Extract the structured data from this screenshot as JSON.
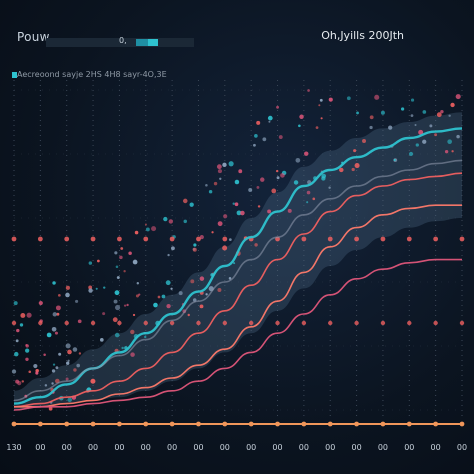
{
  "header": {
    "title": "Pouw",
    "top_right": "Oh,Jyills 200Jth",
    "bar_label": "0,",
    "caption": "Aecreoond sayje 2HS 4H8 sayr-4O,3E"
  },
  "colors": {
    "background": "#0b1420",
    "cyan": "#2ec2cf",
    "red": "#f06060",
    "pink": "#e0567a",
    "grid": "#3a4656"
  },
  "chart_data": {
    "type": "line",
    "x_tick_labels": [
      "130",
      "00",
      "00",
      "00",
      "00",
      "00",
      "00",
      "00",
      "00",
      "00",
      "00",
      "00",
      "00",
      "00",
      "00",
      "00",
      "00",
      "00"
    ],
    "x": [
      0,
      1,
      2,
      3,
      4,
      5,
      6,
      7,
      8,
      9,
      10,
      11,
      12,
      13,
      14,
      15,
      16,
      17
    ],
    "ylim": [
      0,
      100
    ],
    "grid": true,
    "series": [
      {
        "color": "#2ec2cf",
        "values": [
          2,
          4,
          8,
          13,
          18,
          24,
          30,
          37,
          45,
          54,
          62,
          70,
          75,
          79,
          82,
          85,
          87,
          88
        ]
      },
      {
        "color": "#f06060",
        "values": [
          1,
          2,
          4,
          6,
          9,
          13,
          18,
          24,
          31,
          39,
          47,
          55,
          62,
          67,
          70,
          72,
          73,
          74
        ]
      },
      {
        "color": "#ff7a6a",
        "values": [
          1,
          1,
          2,
          3,
          5,
          7,
          10,
          14,
          19,
          26,
          34,
          43,
          51,
          57,
          61,
          63,
          64,
          64
        ]
      },
      {
        "color": "#e0567a",
        "values": [
          0,
          1,
          1,
          2,
          3,
          4,
          6,
          9,
          13,
          18,
          24,
          30,
          36,
          41,
          44,
          46,
          47,
          47
        ]
      },
      {
        "color": "#8a95a8",
        "values": [
          3,
          6,
          9,
          13,
          17,
          22,
          28,
          34,
          40,
          47,
          54,
          61,
          66,
          70,
          73,
          75,
          77,
          78
        ]
      }
    ],
    "band_upper": [
      6,
      10,
      14,
      19,
      24,
      30,
      36,
      43,
      51,
      60,
      68,
      76,
      81,
      85,
      88,
      90,
      92,
      93
    ],
    "band_lower": [
      0,
      1,
      2,
      3,
      4,
      6,
      9,
      13,
      18,
      24,
      31,
      38,
      45,
      50,
      54,
      57,
      59,
      60
    ],
    "baseline_color": "#f0965a"
  }
}
